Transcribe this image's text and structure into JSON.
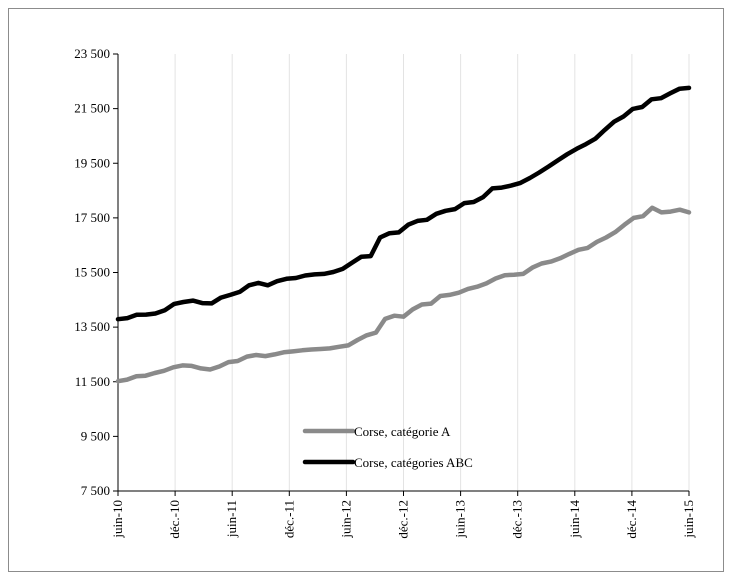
{
  "chart_data": {
    "type": "line",
    "title": "",
    "xlabel": "",
    "ylabel": "",
    "ylim": [
      7500,
      23500
    ],
    "y_ticks": [
      "7 500",
      "9 500",
      "11 500",
      "13 500",
      "15 500",
      "17 500",
      "19 500",
      "21 500",
      "23 500"
    ],
    "y_tick_values": [
      7500,
      9500,
      11500,
      13500,
      15500,
      17500,
      19500,
      21500,
      23500
    ],
    "x_tick_labels": [
      "juin-10",
      "déc.-10",
      "juin-11",
      "déc.-11",
      "juin-12",
      "déc.-12",
      "juin-13",
      "déc.-13",
      "juin-14",
      "déc.-14",
      "juin-15"
    ],
    "x_start": "juin-10",
    "x_end": "juin-15",
    "grid": "vertical",
    "legend_position": "bottom-center",
    "series": [
      {
        "name": "Corse, catégorie A",
        "color": "#8a8a8a",
        "values": [
          11520,
          11580,
          11700,
          11720,
          11820,
          11900,
          12030,
          12100,
          12080,
          11990,
          11950,
          12060,
          12220,
          12260,
          12420,
          12480,
          12440,
          12500,
          12580,
          12610,
          12650,
          12680,
          12700,
          12720,
          12780,
          12830,
          13030,
          13200,
          13300,
          13800,
          13920,
          13880,
          14150,
          14330,
          14360,
          14640,
          14680,
          14760,
          14900,
          14980,
          15100,
          15280,
          15400,
          15420,
          15450,
          15680,
          15830,
          15900,
          16020,
          16180,
          16330,
          16400,
          16620,
          16780,
          16980,
          17250,
          17500,
          17560,
          17870,
          17700,
          17730,
          17800,
          17700
        ]
      },
      {
        "name": "Corse, catégories ABC",
        "color": "#000000",
        "values": [
          13790,
          13830,
          13950,
          13960,
          14000,
          14120,
          14350,
          14420,
          14470,
          14380,
          14370,
          14580,
          14680,
          14790,
          15030,
          15120,
          15030,
          15180,
          15270,
          15300,
          15390,
          15430,
          15450,
          15520,
          15630,
          15860,
          16080,
          16100,
          16780,
          16940,
          16970,
          17250,
          17390,
          17430,
          17650,
          17760,
          17820,
          18040,
          18080,
          18260,
          18580,
          18610,
          18680,
          18780,
          18960,
          19160,
          19380,
          19610,
          19830,
          20030,
          20200,
          20400,
          20720,
          21020,
          21210,
          21490,
          21560,
          21840,
          21880,
          22060,
          22230,
          22260
        ]
      }
    ]
  }
}
